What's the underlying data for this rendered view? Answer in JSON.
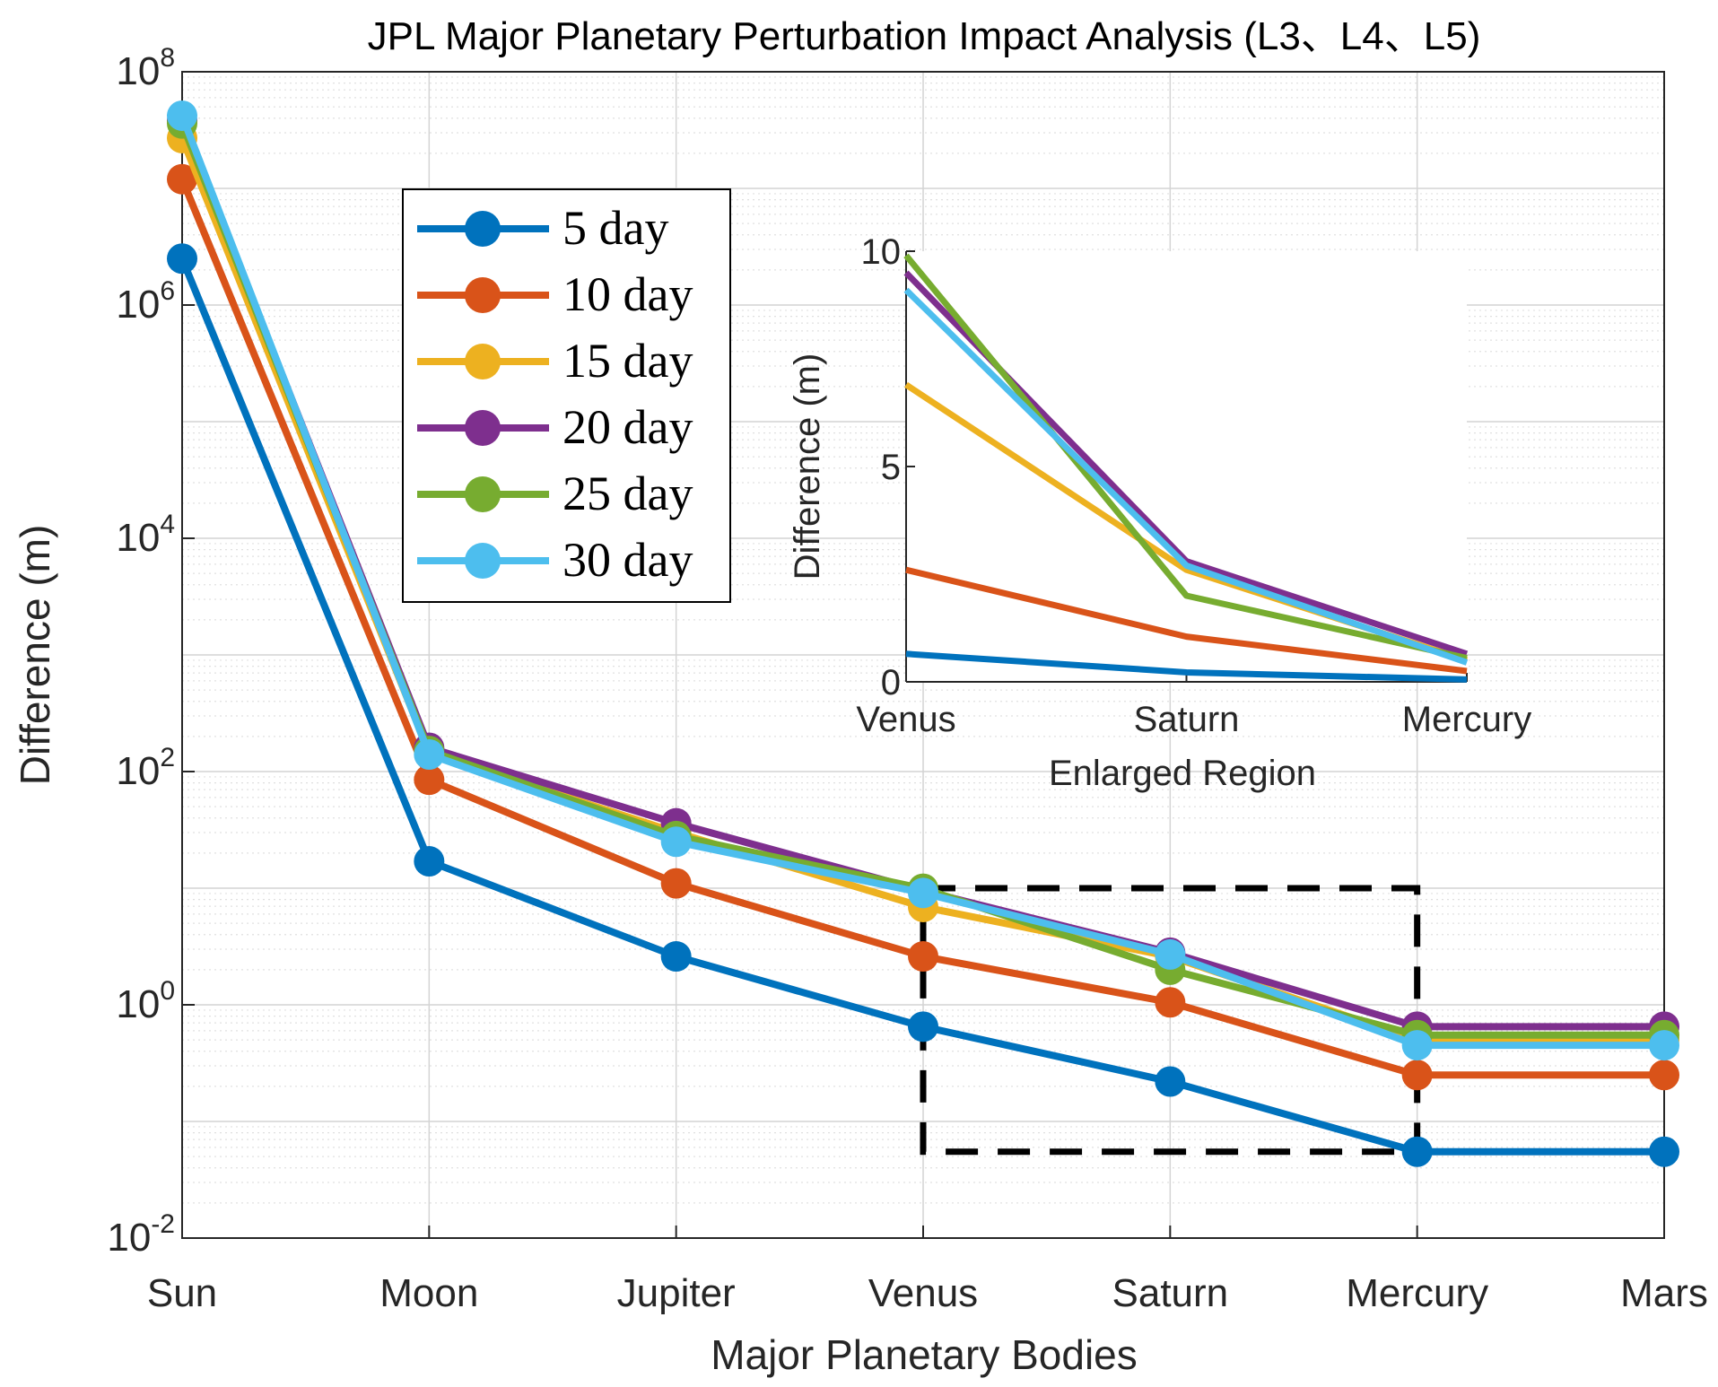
{
  "chart_data": [
    {
      "type": "line",
      "title": "JPL Major Planetary Perturbation Impact Analysis (L3、L4、L5)",
      "xlabel": "Major Planetary Bodies",
      "ylabel": "Difference (m)",
      "yscale": "log",
      "ylim": [
        0.01,
        100000000
      ],
      "ytick_labels": [
        {
          "base": "10",
          "exp": "-2",
          "value": 0.01
        },
        {
          "base": "10",
          "exp": "0",
          "value": 1
        },
        {
          "base": "10",
          "exp": "2",
          "value": 100
        },
        {
          "base": "10",
          "exp": "4",
          "value": 10000
        },
        {
          "base": "10",
          "exp": "6",
          "value": 1000000
        },
        {
          "base": "10",
          "exp": "8",
          "value": 100000000
        }
      ],
      "categories": [
        "Sun",
        "Moon",
        "Jupiter",
        "Venus",
        "Saturn",
        "Mercury",
        "Mars"
      ],
      "grid": true,
      "legend_position": "upper-left",
      "series": [
        {
          "name": "5 day",
          "color": "#0072BD",
          "values": [
            2500000,
            17,
            2.6,
            0.65,
            0.22,
            0.055,
            0.055
          ]
        },
        {
          "name": "10 day",
          "color": "#D95319",
          "values": [
            12000000,
            85,
            11,
            2.6,
            1.05,
            0.25,
            0.25
          ]
        },
        {
          "name": "15 day",
          "color": "#EDB120",
          "values": [
            27000000,
            145,
            30,
            6.9,
            2.6,
            0.5,
            0.5
          ]
        },
        {
          "name": "20 day",
          "color": "#7E2F8E",
          "values": [
            38000000,
            160,
            36,
            9.5,
            2.8,
            0.65,
            0.65
          ]
        },
        {
          "name": "25 day",
          "color": "#77AC30",
          "values": [
            36000000,
            150,
            28,
            9.9,
            2.0,
            0.55,
            0.55
          ]
        },
        {
          "name": "30 day",
          "color": "#4DBEEE",
          "values": [
            42000000,
            140,
            25,
            9.1,
            2.7,
            0.45,
            0.45
          ]
        }
      ],
      "highlight_region": {
        "x_from": "Venus",
        "x_to": "Mercury",
        "y_from": 0.055,
        "y_to": 10
      }
    },
    {
      "type": "line",
      "title": "",
      "xlabel": "Enlarged Region",
      "ylabel": "Difference (m)",
      "yscale": "linear",
      "ylim": [
        0,
        10
      ],
      "yticks": [
        0,
        5,
        10
      ],
      "ytick_labels": [
        "0",
        "5",
        "10"
      ],
      "categories": [
        "Venus",
        "Saturn",
        "Mercury"
      ],
      "series": [
        {
          "name": "5 day",
          "color": "#0072BD",
          "values": [
            0.65,
            0.22,
            0.055
          ]
        },
        {
          "name": "10 day",
          "color": "#D95319",
          "values": [
            2.6,
            1.05,
            0.25
          ]
        },
        {
          "name": "15 day",
          "color": "#EDB120",
          "values": [
            6.9,
            2.6,
            0.5
          ]
        },
        {
          "name": "20 day",
          "color": "#7E2F8E",
          "values": [
            9.5,
            2.8,
            0.65
          ]
        },
        {
          "name": "25 day",
          "color": "#77AC30",
          "values": [
            9.9,
            2.0,
            0.55
          ]
        },
        {
          "name": "30 day",
          "color": "#4DBEEE",
          "values": [
            9.1,
            2.7,
            0.45
          ]
        }
      ]
    }
  ]
}
